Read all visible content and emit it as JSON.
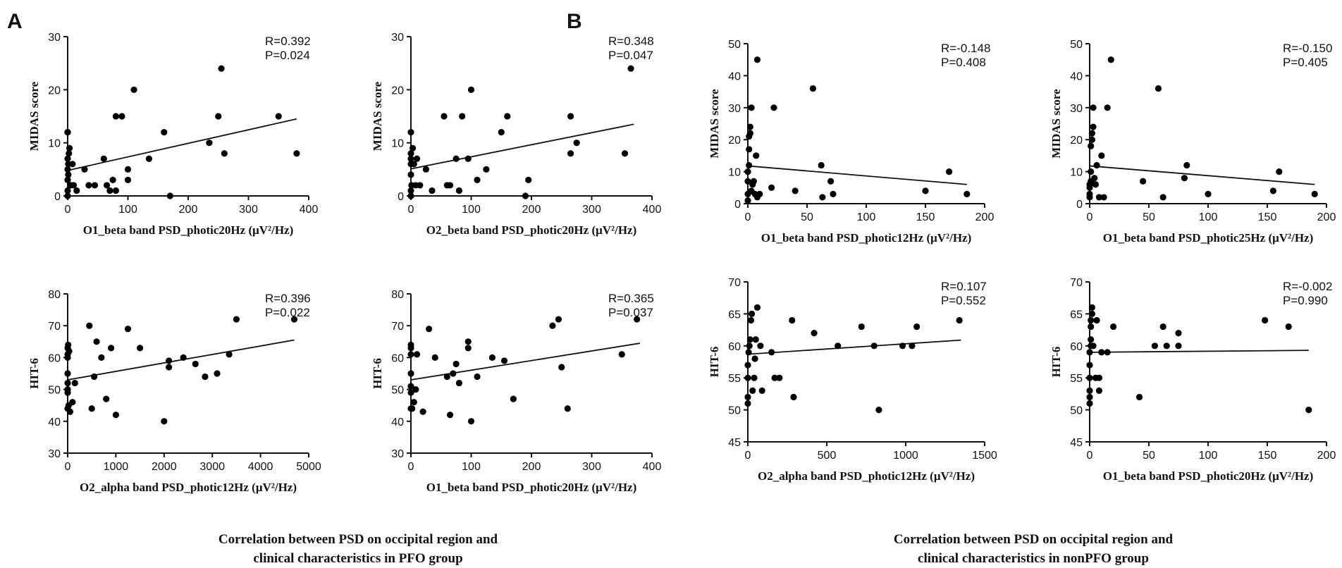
{
  "panel_labels": {
    "a": "A",
    "b": "B"
  },
  "captions": {
    "pfo": {
      "line1": "Correlation between PSD on occipital region and",
      "line2": "clinical characteristics in PFO group"
    },
    "nonpfo": {
      "line1": "Correlation between PSD on occipital region and",
      "line2": "clinical characteristics in nonPFO group"
    }
  },
  "chart_data": [
    {
      "id": "A1",
      "type": "scatter",
      "panel": "A",
      "xlabel": "O1_beta band PSD_photic20Hz (μV²/Hz)",
      "ylabel": "MIDAS score",
      "xlim": [
        0,
        400
      ],
      "ylim": [
        0,
        30
      ],
      "xticks": [
        0,
        100,
        200,
        300,
        400
      ],
      "yticks": [
        0,
        10,
        20,
        30
      ],
      "stat_r": "R=0.392",
      "stat_p": "P=0.024",
      "fit": {
        "x": [
          0,
          380
        ],
        "y": [
          4.8,
          14.5
        ]
      },
      "x": [
        0,
        0,
        0,
        0,
        0,
        0,
        0,
        1,
        1,
        2,
        3,
        5,
        8,
        10,
        15,
        28,
        35,
        45,
        60,
        65,
        70,
        75,
        80,
        80,
        90,
        100,
        100,
        110,
        135,
        160,
        170,
        235,
        250,
        255,
        260,
        350,
        380
      ],
      "y": [
        0,
        1,
        3,
        5,
        7,
        12,
        12,
        4,
        6,
        8,
        9,
        2,
        6,
        2,
        1,
        5,
        2,
        2,
        7,
        2,
        1,
        3,
        15,
        1,
        15,
        5,
        3,
        20,
        7,
        12,
        0,
        10,
        15,
        24,
        8,
        15,
        8
      ]
    },
    {
      "id": "A2",
      "type": "scatter",
      "panel": "A",
      "xlabel": "O2_beta band PSD_photic20Hz (μV²/Hz)",
      "ylabel": "MIDAS score",
      "xlim": [
        0,
        400
      ],
      "ylim": [
        0,
        30
      ],
      "xticks": [
        0,
        100,
        200,
        300,
        400
      ],
      "yticks": [
        0,
        10,
        20,
        30
      ],
      "stat_r": "R=0.348",
      "stat_p": "P=0.047",
      "fit": {
        "x": [
          0,
          370
        ],
        "y": [
          5.1,
          13.5
        ]
      },
      "x": [
        0,
        0,
        0,
        0,
        0,
        0,
        0,
        1,
        3,
        5,
        8,
        10,
        15,
        25,
        35,
        55,
        60,
        65,
        75,
        80,
        85,
        95,
        100,
        110,
        125,
        150,
        160,
        190,
        195,
        265,
        265,
        275,
        355,
        365
      ],
      "y": [
        0,
        1,
        4,
        6,
        7,
        8,
        12,
        2,
        9,
        6,
        2,
        7,
        2,
        5,
        1,
        15,
        2,
        2,
        7,
        1,
        15,
        7,
        20,
        3,
        5,
        12,
        15,
        0,
        3,
        15,
        8,
        10,
        8,
        24
      ]
    },
    {
      "id": "A3",
      "type": "scatter",
      "panel": "A",
      "xlabel": "O2_alpha band PSD_photic12Hz (μV²/Hz)",
      "ylabel": "HIT-6",
      "xlim": [
        0,
        5000
      ],
      "ylim": [
        30,
        80
      ],
      "xticks": [
        0,
        1000,
        2000,
        3000,
        4000,
        5000
      ],
      "yticks": [
        30,
        40,
        50,
        60,
        70,
        80
      ],
      "stat_r": "R=0.396",
      "stat_p": "P=0.022",
      "fit": {
        "x": [
          0,
          4700
        ],
        "y": [
          53.0,
          65.5
        ]
      },
      "x": [
        0,
        0,
        0,
        0,
        0,
        0,
        0,
        0,
        10,
        20,
        30,
        50,
        100,
        150,
        450,
        500,
        550,
        600,
        700,
        800,
        900,
        1000,
        1250,
        1500,
        2000,
        2100,
        2100,
        2400,
        2650,
        2850,
        3100,
        3350,
        3500,
        4700
      ],
      "y": [
        44,
        49,
        50,
        52,
        55,
        60,
        61,
        63,
        64,
        45,
        62,
        43,
        46,
        52,
        70,
        44,
        54,
        65,
        60,
        47,
        63,
        42,
        69,
        63,
        40,
        57,
        59,
        60,
        58,
        54,
        55,
        61,
        72,
        72
      ]
    },
    {
      "id": "A4",
      "type": "scatter",
      "panel": "A",
      "xlabel": "O1_beta band PSD_photic20Hz (μV²/Hz)",
      "ylabel": "HIT-6",
      "xlim": [
        0,
        400
      ],
      "ylim": [
        30,
        80
      ],
      "xticks": [
        0,
        100,
        200,
        300,
        400
      ],
      "yticks": [
        30,
        40,
        50,
        60,
        70,
        80
      ],
      "stat_r": "R=0.365",
      "stat_p": "P=0.037",
      "fit": {
        "x": [
          0,
          380
        ],
        "y": [
          53.0,
          64.5
        ]
      },
      "x": [
        0,
        0,
        0,
        0,
        0,
        0,
        0,
        2,
        5,
        8,
        10,
        20,
        30,
        40,
        60,
        65,
        70,
        75,
        80,
        95,
        95,
        100,
        110,
        135,
        155,
        170,
        235,
        245,
        250,
        260,
        350,
        375
      ],
      "y": [
        44,
        49,
        51,
        55,
        61,
        63,
        64,
        44,
        46,
        50,
        61,
        43,
        69,
        60,
        54,
        42,
        55,
        58,
        52,
        63,
        65,
        40,
        54,
        60,
        59,
        47,
        70,
        72,
        57,
        44,
        61,
        72
      ]
    },
    {
      "id": "B1",
      "type": "scatter",
      "panel": "B",
      "xlabel": "O1_beta band PSD_photic12Hz (μV²/Hz)",
      "ylabel": "MIDAS score",
      "xlim": [
        0,
        200
      ],
      "ylim": [
        0,
        50
      ],
      "xticks": [
        0,
        50,
        100,
        150,
        200
      ],
      "yticks": [
        0,
        10,
        20,
        30,
        40,
        50
      ],
      "stat_r": "R=-0.148",
      "stat_p": "P=0.408",
      "fit": {
        "x": [
          0,
          185
        ],
        "y": [
          11.8,
          6.0
        ]
      },
      "x": [
        0,
        0,
        0,
        0,
        1,
        1,
        1,
        2,
        2,
        3,
        3,
        4,
        5,
        6,
        7,
        8,
        8,
        10,
        20,
        22,
        40,
        55,
        62,
        63,
        70,
        72,
        150,
        170,
        185
      ],
      "y": [
        1,
        3,
        7,
        10,
        12,
        17,
        21,
        22,
        24,
        30,
        4,
        6,
        7,
        3,
        15,
        45,
        2,
        3,
        5,
        30,
        4,
        36,
        12,
        2,
        7,
        3,
        4,
        10,
        3
      ]
    },
    {
      "id": "B2",
      "type": "scatter",
      "panel": "B",
      "xlabel": "O1_beta band PSD_photic25Hz (μV²/Hz)",
      "ylabel": "MIDAS score",
      "xlim": [
        0,
        200
      ],
      "ylim": [
        0,
        50
      ],
      "xticks": [
        0,
        50,
        100,
        150,
        200
      ],
      "yticks": [
        0,
        10,
        20,
        30,
        40,
        50
      ],
      "stat_r": "R=-0.150",
      "stat_p": "P=0.405",
      "fit": {
        "x": [
          0,
          190
        ],
        "y": [
          11.8,
          6.0
        ]
      },
      "x": [
        0,
        0,
        0,
        0,
        1,
        1,
        1,
        2,
        2,
        3,
        3,
        4,
        5,
        6,
        8,
        10,
        12,
        15,
        18,
        45,
        58,
        62,
        80,
        82,
        100,
        155,
        160,
        190
      ],
      "y": [
        2,
        3,
        5,
        6,
        7,
        10,
        18,
        20,
        22,
        24,
        30,
        8,
        6,
        12,
        2,
        15,
        2,
        30,
        45,
        7,
        36,
        2,
        8,
        12,
        3,
        4,
        10,
        3
      ]
    },
    {
      "id": "B3",
      "type": "scatter",
      "panel": "B",
      "xlabel": "O2_alpha band PSD_photic12Hz (μV²/Hz)",
      "ylabel": "HIT-6",
      "xlim": [
        0,
        1500
      ],
      "ylim": [
        45,
        70
      ],
      "xticks": [
        0,
        500,
        1000,
        1500
      ],
      "yticks": [
        45,
        50,
        55,
        60,
        65,
        70
      ],
      "stat_r": "R=0.107",
      "stat_p": "P=0.552",
      "fit": {
        "x": [
          0,
          1350
        ],
        "y": [
          58.7,
          60.9
        ]
      },
      "x": [
        0,
        0,
        0,
        0,
        5,
        10,
        15,
        20,
        25,
        30,
        40,
        45,
        50,
        60,
        80,
        90,
        150,
        170,
        200,
        280,
        290,
        420,
        570,
        720,
        800,
        830,
        980,
        1040,
        1070,
        1340
      ],
      "y": [
        51,
        52,
        55,
        57,
        59,
        60,
        61,
        64,
        65,
        53,
        55,
        58,
        61,
        66,
        60,
        53,
        59,
        55,
        55,
        64,
        52,
        62,
        60,
        63,
        60,
        50,
        60,
        60,
        63,
        64
      ]
    },
    {
      "id": "B4",
      "type": "scatter",
      "panel": "B",
      "xlabel": "O1_beta band PSD_photic20Hz (μV²/Hz)",
      "ylabel": "HIT-6",
      "xlim": [
        0,
        200
      ],
      "ylim": [
        45,
        70
      ],
      "xticks": [
        0,
        50,
        100,
        150,
        200
      ],
      "yticks": [
        45,
        50,
        55,
        60,
        65,
        70
      ],
      "stat_r": "R=-0.002",
      "stat_p": "P=0.990",
      "fit": {
        "x": [
          0,
          185
        ],
        "y": [
          59.0,
          59.3
        ]
      },
      "x": [
        0,
        0,
        0,
        0,
        0,
        0,
        1,
        1,
        1,
        1,
        2,
        2,
        3,
        5,
        6,
        8,
        8,
        10,
        15,
        20,
        42,
        55,
        62,
        65,
        75,
        75,
        148,
        168,
        185
      ],
      "y": [
        51,
        52,
        53,
        55,
        57,
        59,
        60,
        61,
        63,
        64,
        65,
        66,
        60,
        55,
        64,
        55,
        53,
        59,
        59,
        63,
        52,
        60,
        63,
        60,
        62,
        60,
        64,
        63,
        50
      ]
    }
  ]
}
